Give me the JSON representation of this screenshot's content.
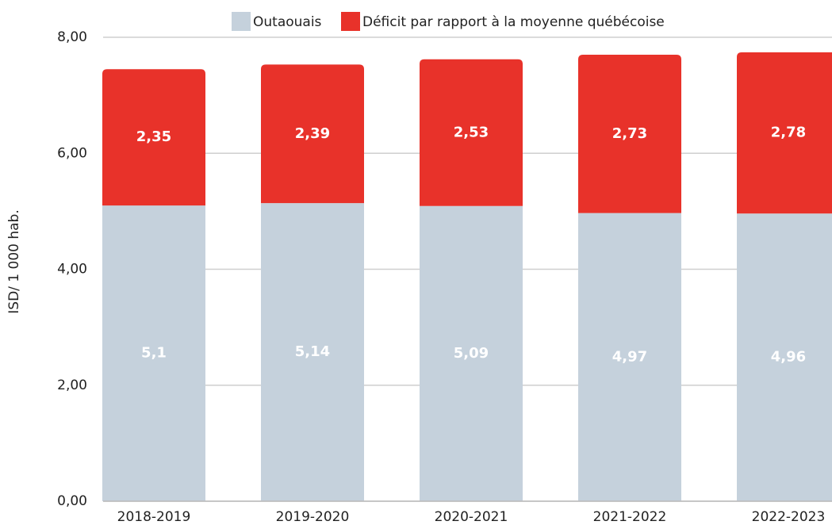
{
  "chart_data": {
    "type": "bar",
    "stacked": true,
    "y_label": "ISD/ 1 000 hab.",
    "categories": [
      "2018-2019",
      "2019-2020",
      "2020-2021",
      "2021-2022",
      "2022-2023"
    ],
    "series": [
      {
        "name": "Outaouais",
        "color": "#c5d1dc",
        "values": [
          5.1,
          5.14,
          5.09,
          4.97,
          4.96
        ],
        "value_labels": [
          "5,1",
          "5,14",
          "5,09",
          "4,97",
          "4,96"
        ]
      },
      {
        "name": "Déficit par rapport à la moyenne québécoise",
        "color": "#e8322a",
        "values": [
          2.35,
          2.39,
          2.53,
          2.73,
          2.78
        ],
        "value_labels": [
          "2,35",
          "2,39",
          "2,53",
          "2,73",
          "2,78"
        ]
      }
    ],
    "ylim": [
      0,
      8
    ],
    "yticks": [
      {
        "value": 0,
        "label": "0,00"
      },
      {
        "value": 2,
        "label": "2,00"
      },
      {
        "value": 4,
        "label": "4,00"
      },
      {
        "value": 6,
        "label": "6,00"
      },
      {
        "value": 8,
        "label": "8,00"
      }
    ],
    "grid": true,
    "legend": "top"
  }
}
